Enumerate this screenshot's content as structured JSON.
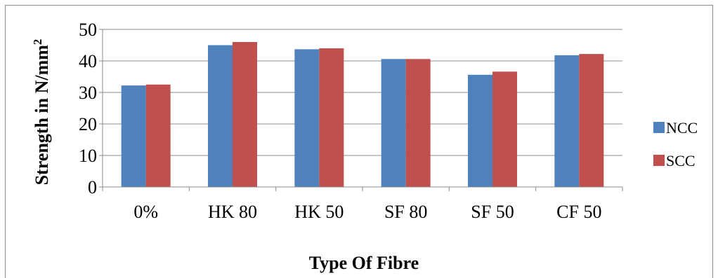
{
  "chart_data": {
    "type": "bar",
    "categories": [
      "0%",
      "HK 80",
      "HK 50",
      "SF 80",
      "SF 50",
      "CF 50"
    ],
    "series": [
      {
        "name": "NCC",
        "values": [
          32.2,
          45.0,
          43.7,
          40.6,
          35.6,
          41.8
        ],
        "color": "#4f81bd"
      },
      {
        "name": "SCC",
        "values": [
          32.5,
          46.0,
          44.0,
          40.6,
          36.6,
          42.2
        ],
        "color": "#c0504d"
      }
    ],
    "xlabel": "Type Of Fibre",
    "ylabel": "Strength in N/mm",
    "ylabel_sup": "2",
    "ylim": [
      0,
      50
    ],
    "yticks": [
      "0",
      "10",
      "20",
      "30",
      "40",
      "50"
    ],
    "grid": true,
    "legend_position": "right"
  }
}
